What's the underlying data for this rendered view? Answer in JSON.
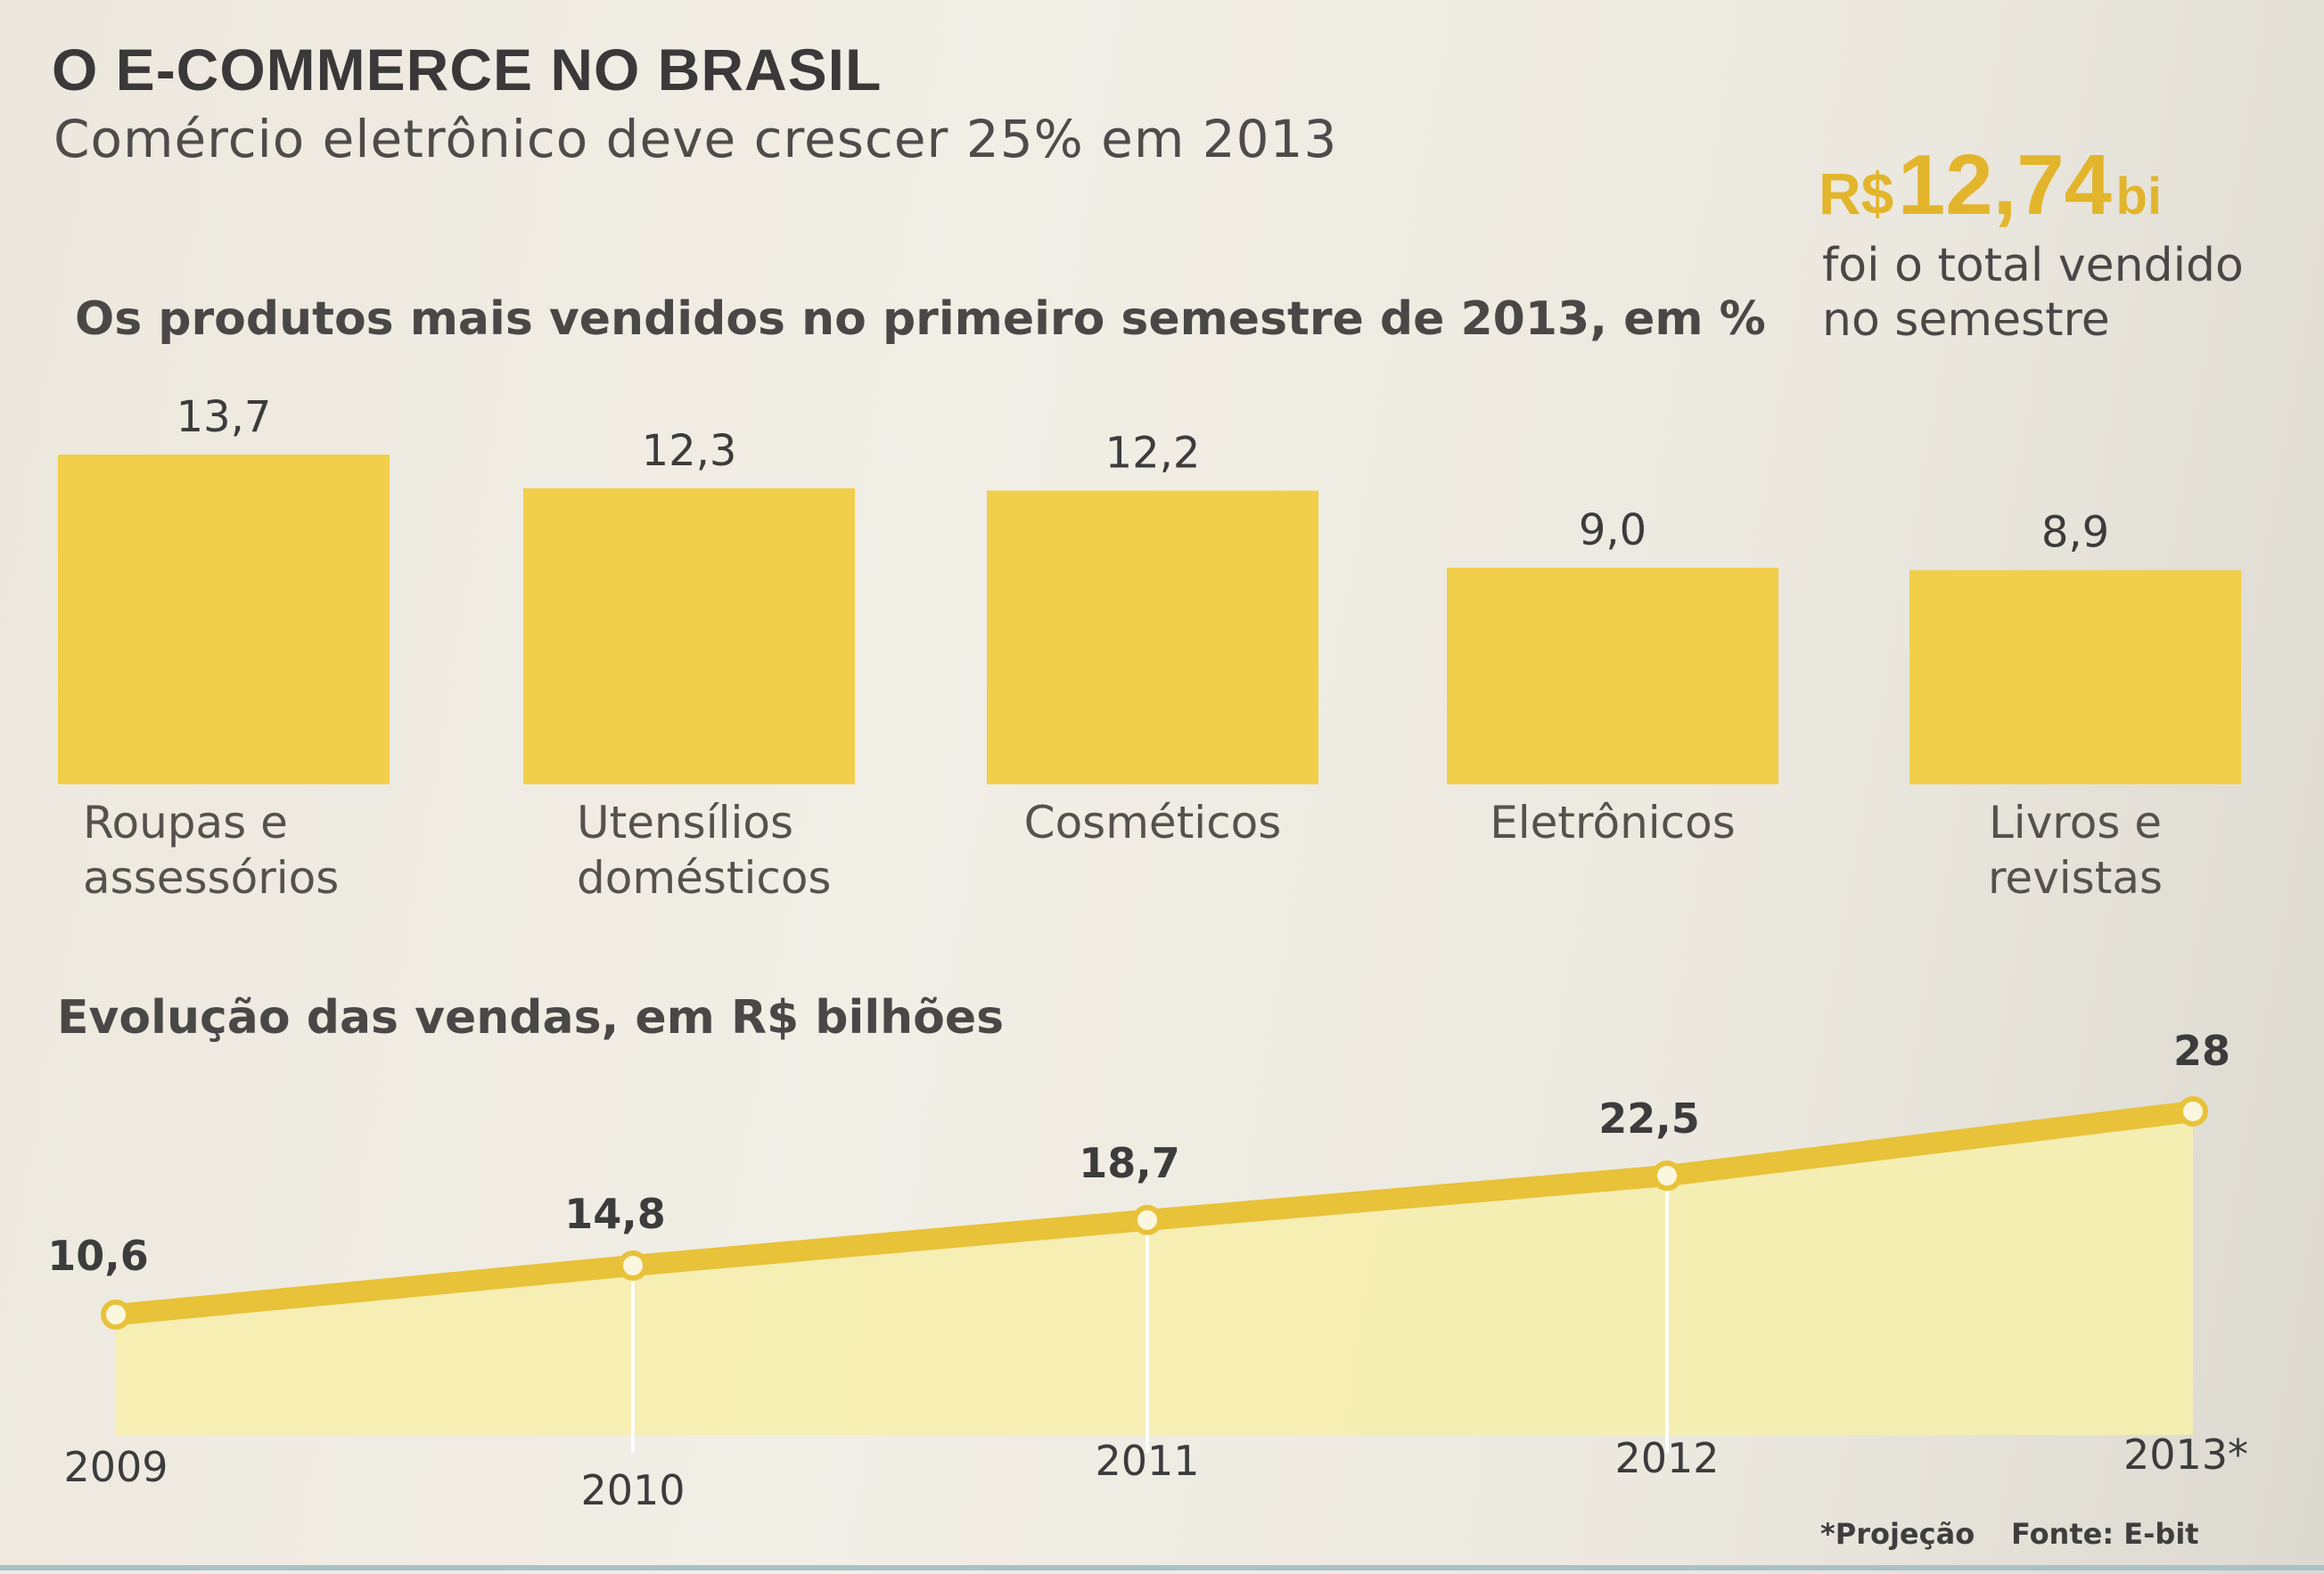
{
  "header": {
    "title": "O E-COMMERCE NO BRASIL",
    "subtitle": "Comércio eletrônico deve crescer 25% em 2013"
  },
  "highlight": {
    "prefix": "R$",
    "value": "12,74",
    "suffix": "bi",
    "caption_line1": "foi o total vendido",
    "caption_line2": "no semestre"
  },
  "colors": {
    "bar_fill": "#f1cf4a",
    "line_stroke": "#e8c239",
    "area_fill": "#f5eeb0",
    "highlight_text": "#e2b52c"
  },
  "chart_data": [
    {
      "type": "bar",
      "title": "Os produtos mais vendidos no primeiro semestre de 2013, em %",
      "categories": [
        [
          "Roupas e",
          "assessórios"
        ],
        [
          "Utensílios",
          "domésticos"
        ],
        [
          "Cosméticos"
        ],
        [
          "Eletrônicos"
        ],
        [
          "Livros e",
          "revistas"
        ]
      ],
      "values": [
        13.7,
        12.3,
        12.2,
        9.0,
        8.9
      ],
      "value_labels": [
        "13,7",
        "12,3",
        "12,2",
        "9,0",
        "8,9"
      ],
      "grid": false
    },
    {
      "type": "area",
      "title": "Evolução das vendas, em R$ bilhões",
      "categories": [
        "2009",
        "2010",
        "2011",
        "2012",
        "2013*"
      ],
      "values": [
        10.6,
        14.8,
        18.7,
        22.5,
        28
      ],
      "value_labels": [
        "10,6",
        "14,8",
        "18,7",
        "22,5",
        "28"
      ],
      "grid": false
    }
  ],
  "footer": {
    "footnote": "*Projeção",
    "source": "Fonte: E-bit"
  }
}
